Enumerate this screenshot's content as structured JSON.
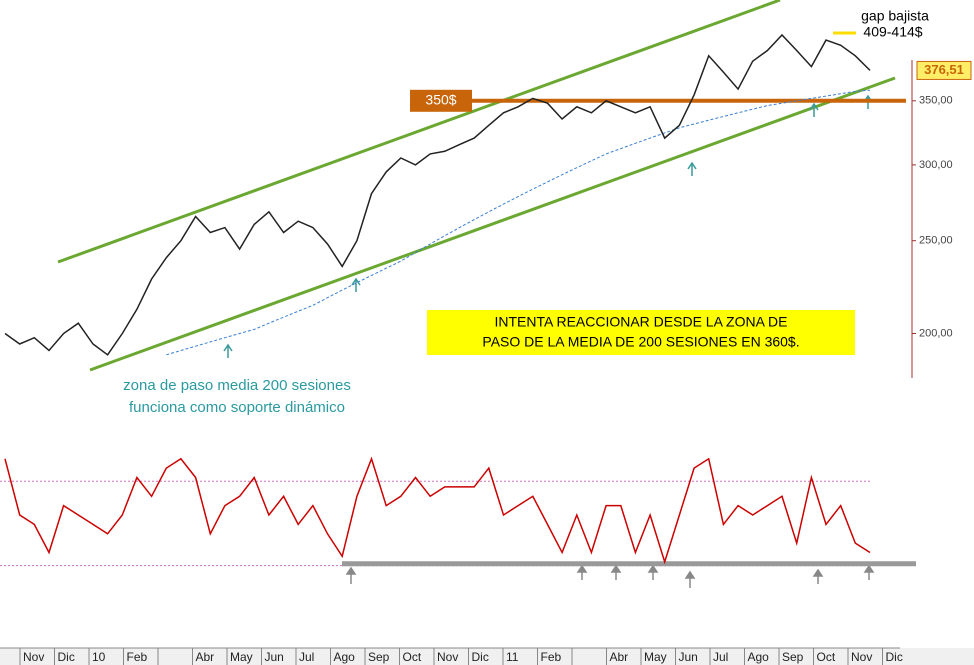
{
  "chart_data": {
    "type": "line",
    "price": {
      "name": "Precio",
      "color": "#222222",
      "values": [
        200,
        195,
        198,
        192,
        200,
        205,
        195,
        190,
        200,
        212,
        228,
        240,
        250,
        265,
        255,
        258,
        245,
        260,
        268,
        255,
        262,
        258,
        248,
        235,
        250,
        280,
        295,
        305,
        300,
        308,
        310,
        315,
        320,
        330,
        340,
        345,
        352,
        348,
        335,
        345,
        340,
        350,
        345,
        340,
        345,
        320,
        330,
        355,
        390,
        375,
        360,
        385,
        395,
        410,
        395,
        380,
        405,
        400,
        390,
        376.51
      ],
      "ylim": [
        181,
        446
      ],
      "log_scale": true,
      "yticks": [
        {
          "value": 350,
          "label": "350,00"
        },
        {
          "value": 300,
          "label": "300,00"
        },
        {
          "value": 250,
          "label": "250,00"
        },
        {
          "value": 200,
          "label": "200,00"
        }
      ],
      "last_price_label": "376,51"
    },
    "moving_average": {
      "color": "#3a7fd0",
      "values": [
        null,
        null,
        null,
        null,
        null,
        null,
        null,
        null,
        null,
        null,
        null,
        190,
        192,
        194,
        196,
        198,
        200,
        202,
        205,
        208,
        211,
        214,
        218,
        222,
        226,
        230,
        234,
        238,
        243,
        248,
        253,
        258,
        263,
        268,
        273,
        278,
        283,
        288,
        293,
        298,
        303,
        308,
        312,
        316,
        320,
        324,
        328,
        331,
        334,
        337,
        340,
        343,
        346,
        348,
        350,
        352,
        354,
        356,
        358,
        359
      ]
    },
    "oscillator": {
      "color": "#cc0000",
      "values": [
        80,
        50,
        45,
        30,
        55,
        50,
        45,
        40,
        50,
        70,
        60,
        75,
        80,
        70,
        40,
        55,
        60,
        70,
        50,
        60,
        45,
        55,
        40,
        28,
        60,
        80,
        55,
        60,
        70,
        60,
        65,
        65,
        65,
        75,
        50,
        55,
        60,
        45,
        30,
        50,
        30,
        55,
        55,
        30,
        50,
        25,
        50,
        75,
        80,
        45,
        55,
        50,
        55,
        60,
        35,
        70,
        45,
        55,
        35,
        30
      ],
      "ylim": [
        10,
        90
      ],
      "levels": [
        68,
        23
      ],
      "support": 24
    },
    "categories": [
      "Nov",
      "Dic",
      "10",
      "Feb",
      null,
      "Abr",
      "May",
      "Jun",
      "Jul",
      "Ago",
      "Sep",
      "Oct",
      "Nov",
      "Dic",
      "11",
      "Feb",
      null,
      "Abr",
      "May",
      "Jun",
      "Jul",
      "Ago",
      "Sep",
      "Oct",
      "Nov",
      "Dic"
    ],
    "level": {
      "value": 350,
      "label": "350$",
      "color": "#c8650a"
    },
    "annotations": {
      "gap_title": "gap bajista",
      "gap_range": "409-414$",
      "box_line1": "INTENTA REACCIONAR DESDE LA ZONA DE",
      "box_line2": "PASO DE LA MEDIA DE 200 SESIONES EN 360$.",
      "note_line1": "zona de paso media 200 sesiones",
      "note_line2": "funciona como soporte dinámico"
    }
  }
}
